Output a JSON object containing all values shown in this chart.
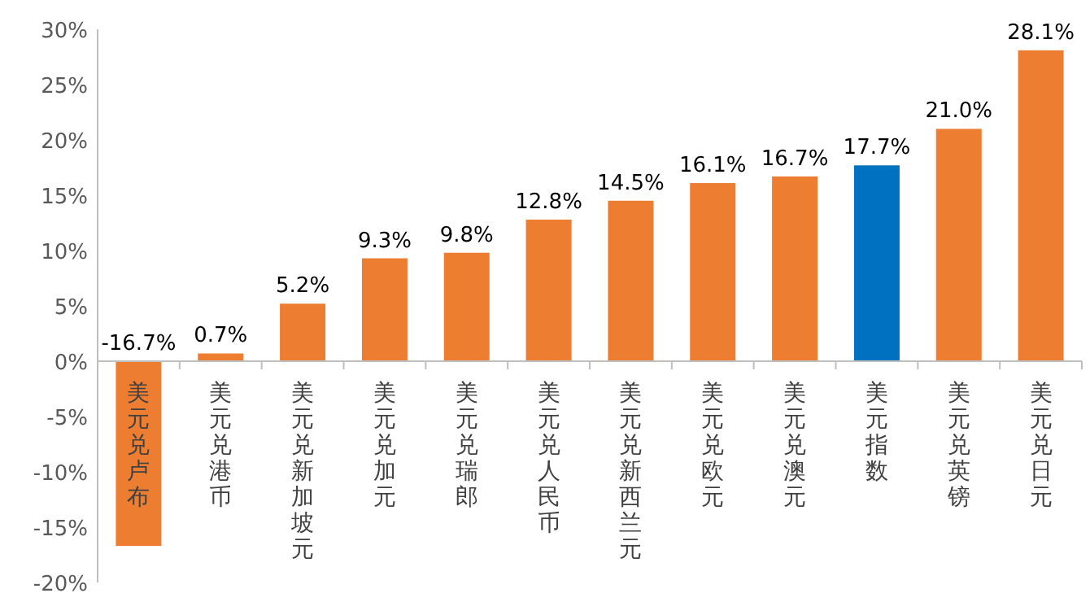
{
  "chart_data": {
    "type": "bar",
    "categories": [
      "美元兑卢布",
      "美元兑港币",
      "美元兑新加坡元",
      "美元兑加元",
      "美元兑瑞郎",
      "美元兑人民币",
      "美元兑新西兰元",
      "美元兑欧元",
      "美元兑澳元",
      "美元指数",
      "美元兑英镑",
      "美元兑日元"
    ],
    "values": [
      -16.7,
      0.7,
      5.2,
      9.3,
      9.8,
      12.8,
      14.5,
      16.1,
      16.7,
      17.7,
      21.0,
      28.1
    ],
    "value_labels": [
      "-16.7%",
      "0.7%",
      "5.2%",
      "9.3%",
      "9.8%",
      "12.8%",
      "14.5%",
      "16.1%",
      "16.7%",
      "17.7%",
      "21.0%",
      "28.1%"
    ],
    "colors": [
      "#ed7d31",
      "#ed7d31",
      "#ed7d31",
      "#ed7d31",
      "#ed7d31",
      "#ed7d31",
      "#ed7d31",
      "#ed7d31",
      "#ed7d31",
      "#0070c0",
      "#ed7d31",
      "#ed7d31"
    ],
    "ylim": [
      -20,
      30
    ],
    "yticks": [
      {
        "value": -20,
        "label": "-20%"
      },
      {
        "value": -15,
        "label": "-15%"
      },
      {
        "value": -10,
        "label": "-10%"
      },
      {
        "value": -5,
        "label": "-5%"
      },
      {
        "value": 0,
        "label": "0%"
      },
      {
        "value": 5,
        "label": "5%"
      },
      {
        "value": 10,
        "label": "10%"
      },
      {
        "value": 15,
        "label": "15%"
      },
      {
        "value": 20,
        "label": "20%"
      },
      {
        "value": 25,
        "label": "25%"
      },
      {
        "value": 30,
        "label": "30%"
      }
    ],
    "grid": false
  }
}
